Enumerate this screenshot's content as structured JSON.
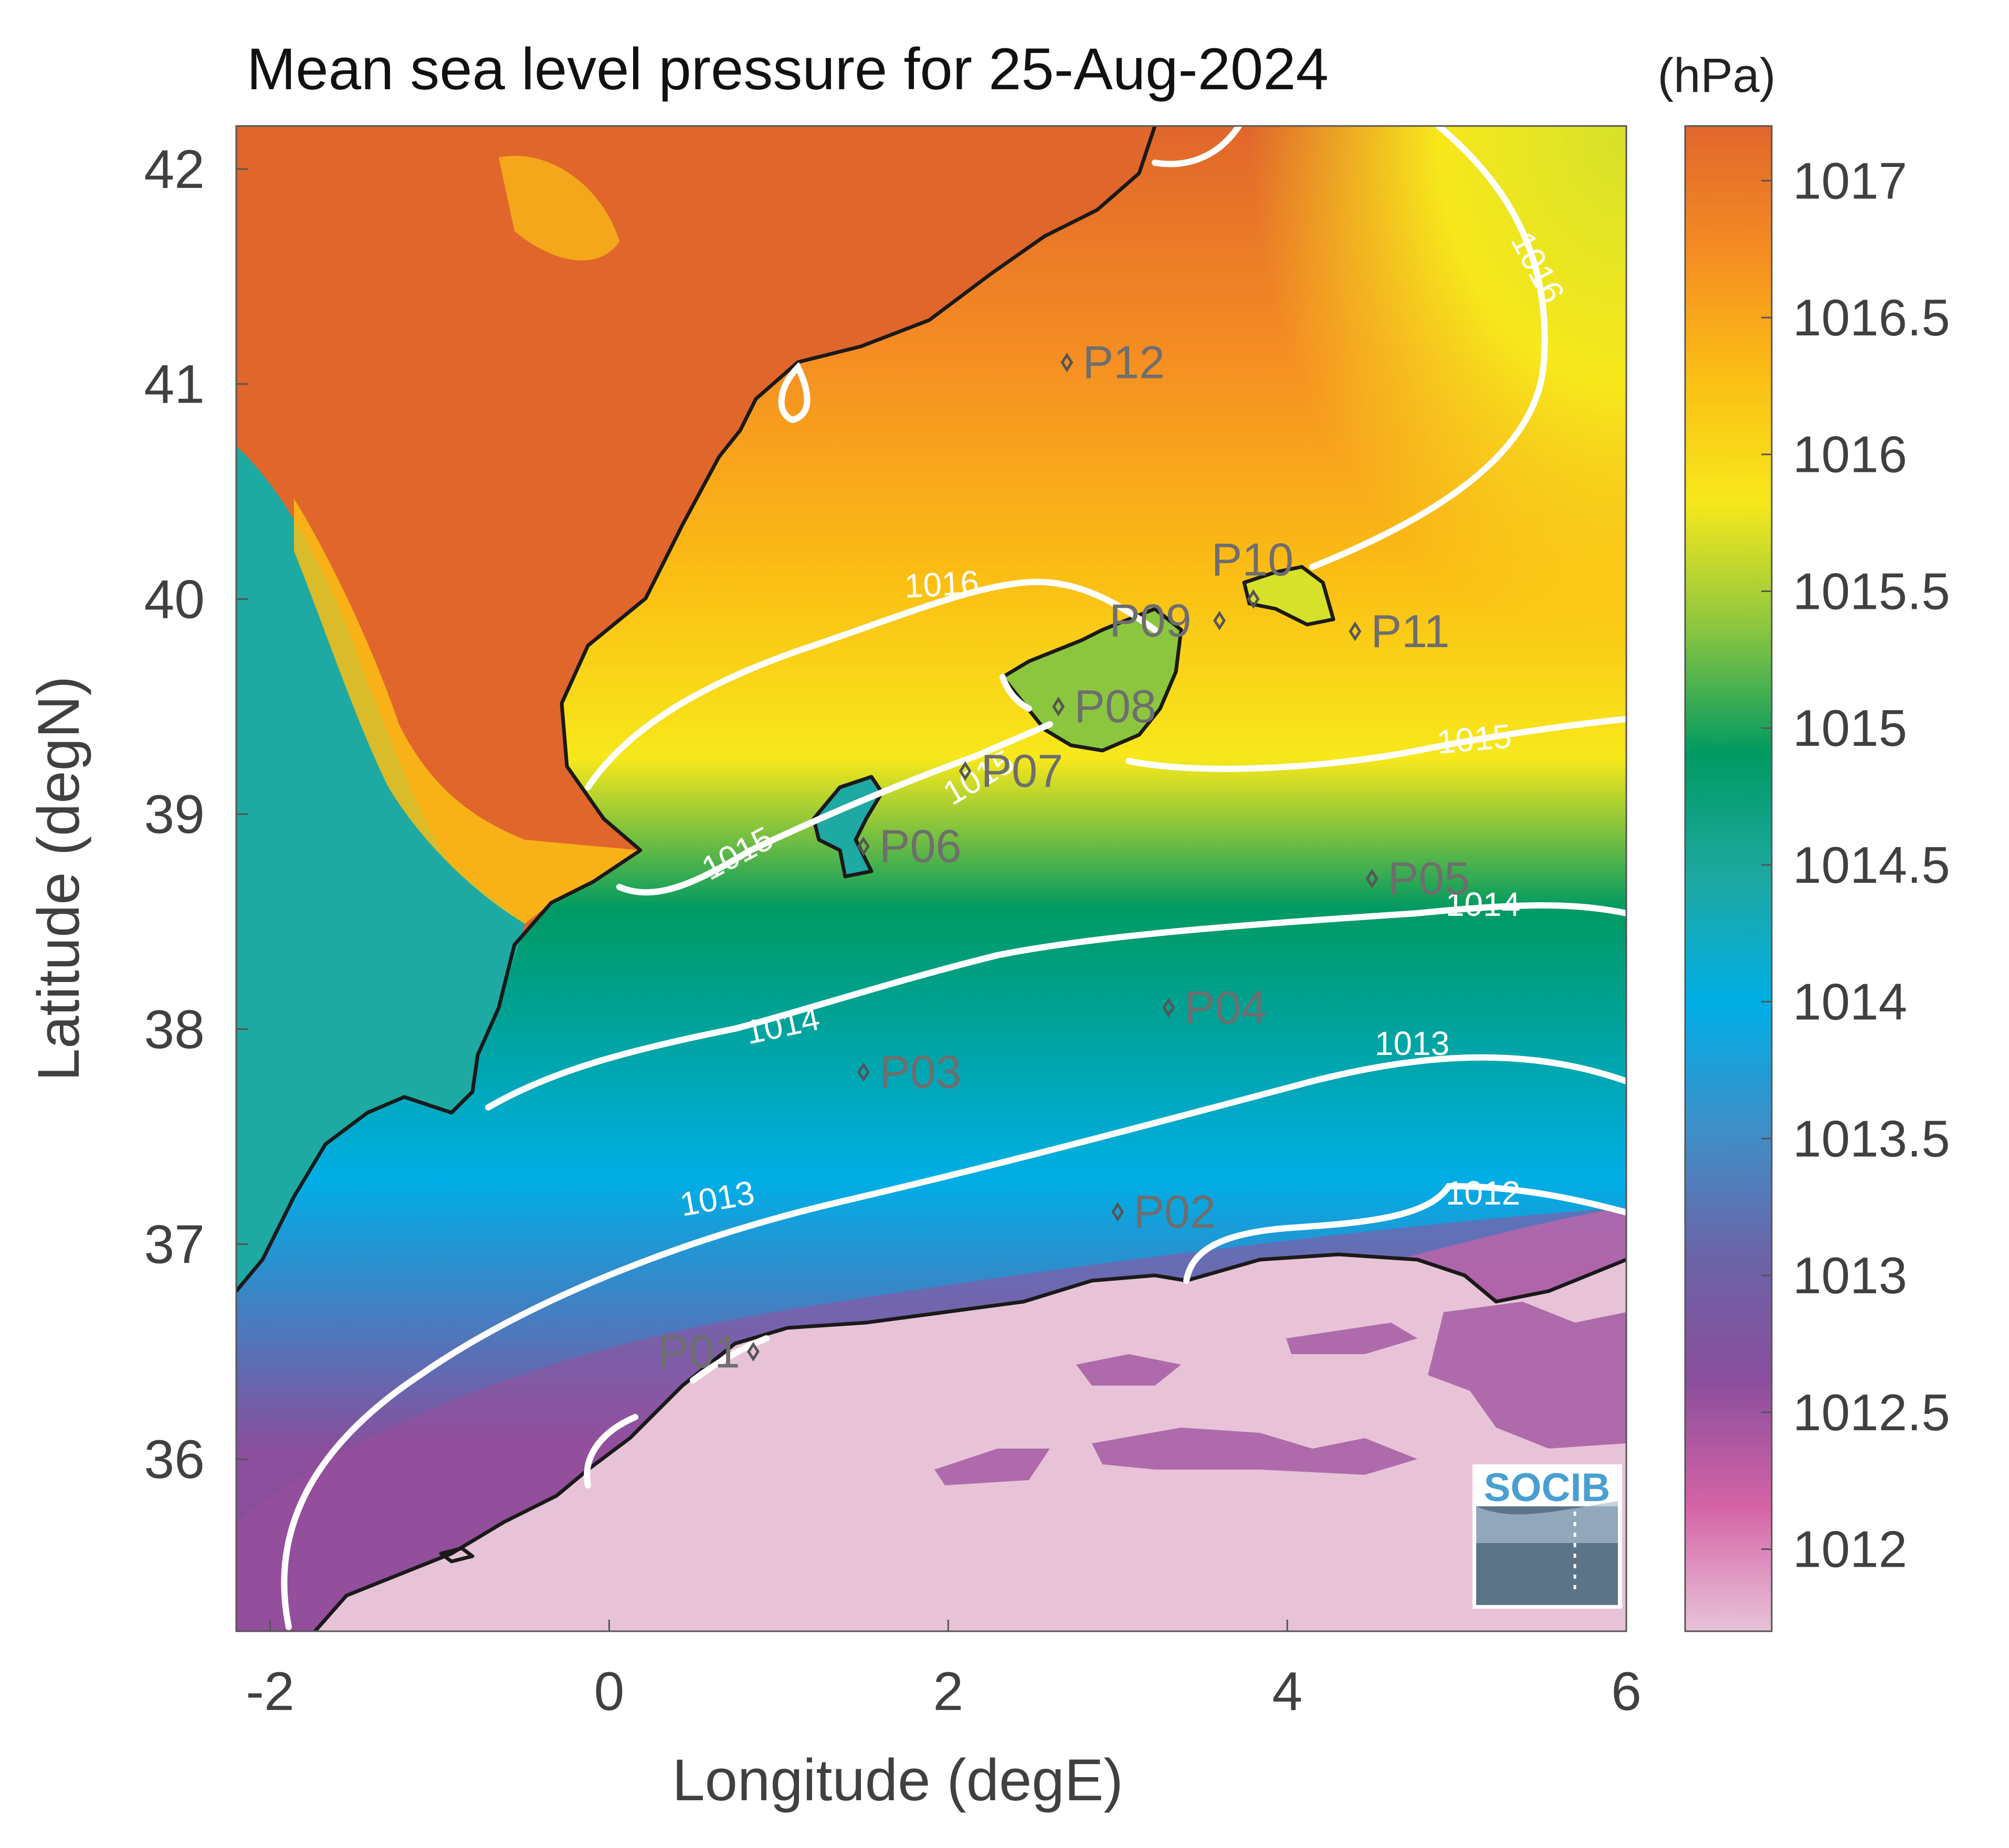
{
  "title": "Mean sea level pressure for 25-Aug-2024",
  "unit_label": "(hPa)",
  "x_axis": {
    "label": "Longitude (degE)",
    "ticks": [
      "-2",
      "0",
      "2",
      "4",
      "6"
    ],
    "range": [
      -2.2,
      6.0
    ]
  },
  "y_axis": {
    "label": "Latitude (degN)",
    "ticks": [
      "42",
      "41",
      "40",
      "39",
      "38",
      "37",
      "36"
    ],
    "range": [
      35.2,
      42.2
    ]
  },
  "colorbar": {
    "ticks": [
      "1017",
      "1016.5",
      "1016",
      "1015.5",
      "1015",
      "1014.5",
      "1014",
      "1013.5",
      "1013",
      "1012.5",
      "1012"
    ],
    "range": [
      1011.7,
      1017.2
    ],
    "colors": [
      "#e8c3d8",
      "#d563a6",
      "#8a4e9c",
      "#6b64a8",
      "#3f8fc8",
      "#00aee6",
      "#1ea9a2",
      "#009a62",
      "#8cc63f",
      "#f7e81b",
      "#fbbe14",
      "#f58d23",
      "#e0662c"
    ]
  },
  "contour_labels": {
    "c1016_a": "1016",
    "c1016_b": "1016",
    "c1015_a": "1015",
    "c1015_b": "1015",
    "c1015_c": "1015",
    "c1014_a": "1014",
    "c1014_b": "1014",
    "c1013_a": "1013",
    "c1013_b": "1013",
    "c1012_a": "1012"
  },
  "stations": [
    {
      "id": "P01",
      "lon": 0.85,
      "lat": 36.5
    },
    {
      "id": "P02",
      "lon": 3.0,
      "lat": 37.15
    },
    {
      "id": "P03",
      "lon": 1.5,
      "lat": 37.8
    },
    {
      "id": "P04",
      "lon": 3.3,
      "lat": 38.1
    },
    {
      "id": "P05",
      "lon": 4.5,
      "lat": 38.7
    },
    {
      "id": "P06",
      "lon": 1.5,
      "lat": 38.85
    },
    {
      "id": "P07",
      "lon": 2.1,
      "lat": 39.2
    },
    {
      "id": "P08",
      "lon": 2.65,
      "lat": 39.5
    },
    {
      "id": "P09",
      "lon": 3.6,
      "lat": 39.9
    },
    {
      "id": "P10",
      "lon": 3.8,
      "lat": 40.0
    },
    {
      "id": "P11",
      "lon": 4.4,
      "lat": 39.85
    },
    {
      "id": "P12",
      "lon": 2.7,
      "lat": 41.1
    }
  ],
  "logo_text": "SOCIB"
}
